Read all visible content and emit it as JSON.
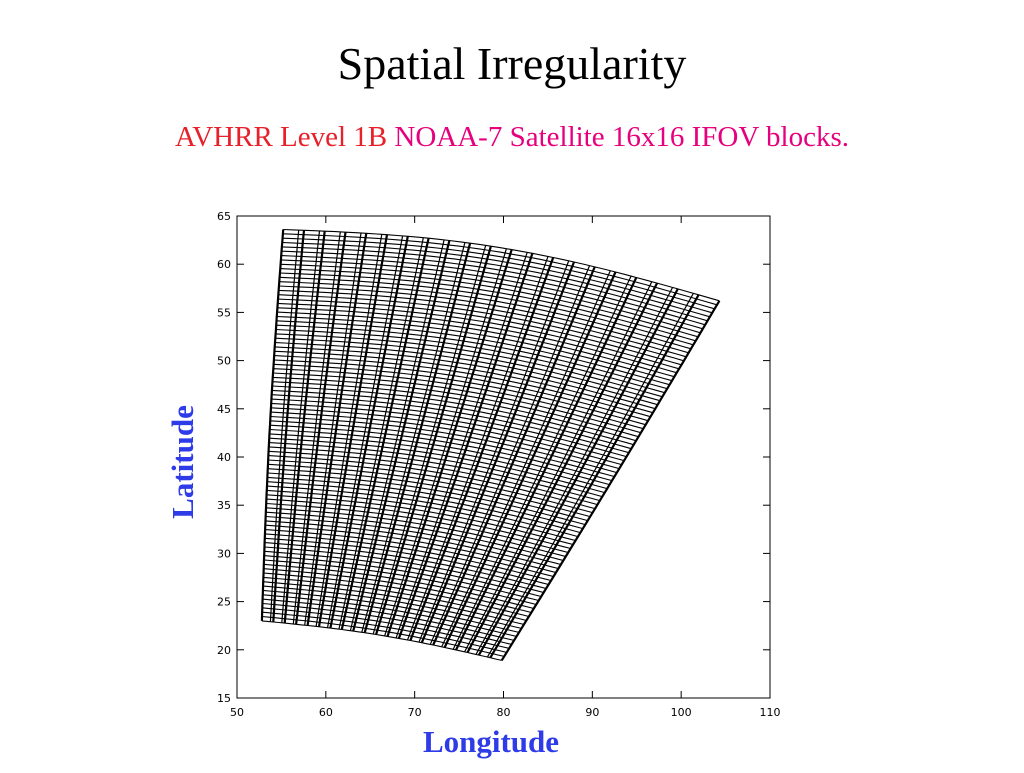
{
  "slide": {
    "title": "Spatial Irregularity",
    "subtitle": {
      "part1": "AVHRR Level 1B",
      "part2": "NOAA-7 Satellite 16x16 IFOV blocks.",
      "part1_color": "#e8202a",
      "part2_color": "#e6007e"
    }
  },
  "chart_data": {
    "type": "grid",
    "title": "",
    "xlabel": "Longitude",
    "ylabel": "Latitude",
    "axis_label_color": "#2e3be8",
    "xlim": [
      50,
      110
    ],
    "ylim": [
      15,
      65
    ],
    "xticks": [
      50,
      60,
      70,
      80,
      90,
      100,
      110
    ],
    "yticks": [
      15,
      20,
      25,
      30,
      35,
      40,
      45,
      50,
      55,
      60,
      65
    ],
    "swath_corners": {
      "top_left": [
        55.2,
        63.6
      ],
      "top_right": [
        104.3,
        56.2
      ],
      "bottom_left": [
        52.8,
        23.0
      ],
      "bottom_right": [
        79.8,
        18.9
      ]
    },
    "across_track_blocks": 21,
    "along_track_rows": 90,
    "grid": false,
    "legend": "none"
  }
}
